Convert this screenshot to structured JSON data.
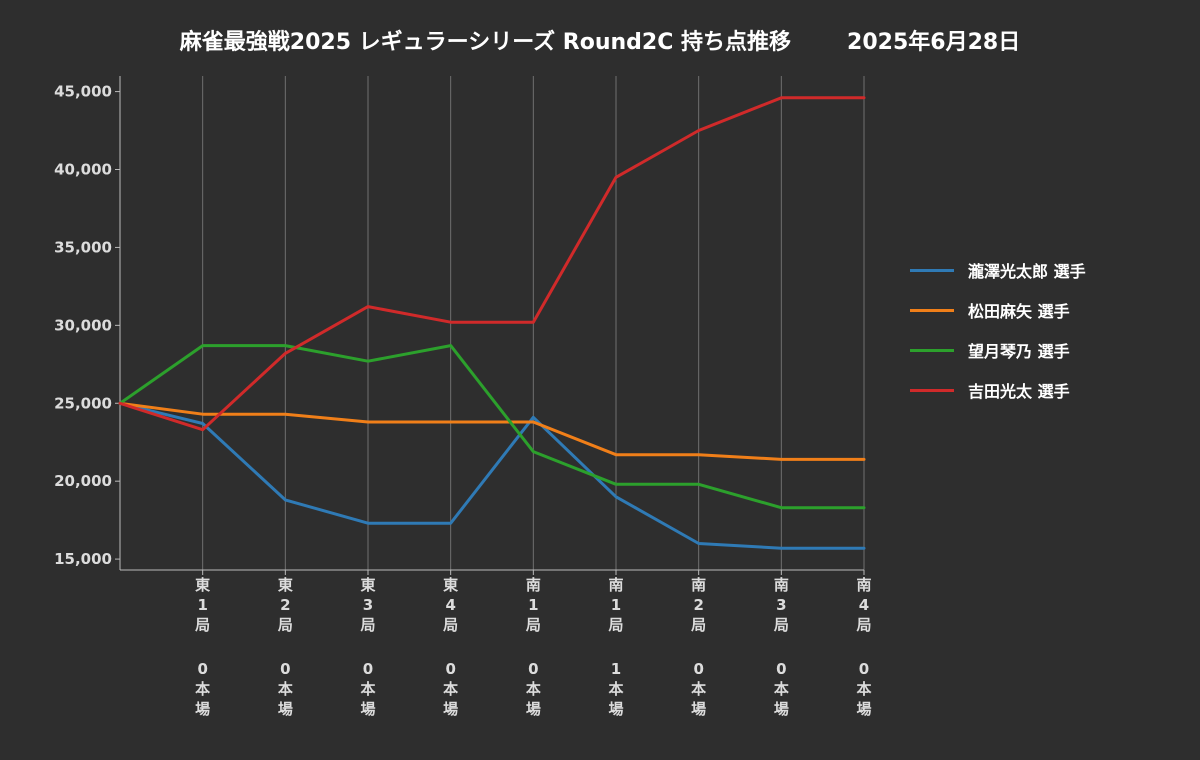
{
  "title": "麻雀最強戦2025 レギュラーシリーズ Round2C 持ち点推移",
  "date": "2025年6月28日",
  "colors": {
    "background": "#2e2e2e",
    "grid": "#707070",
    "axis": "#bbbbbb"
  },
  "chart_data": {
    "type": "line",
    "title": "麻雀最強戦2025 レギュラーシリーズ Round2C 持ち点推移",
    "categories": [
      "",
      "東1局0本場",
      "東2局0本場",
      "東3局0本場",
      "東4局0本場",
      "南1局0本場",
      "南1局1本場",
      "南2局0本場",
      "南3局0本場",
      "南4局0本場"
    ],
    "x_tick_labels": [
      {
        "wind": "東",
        "num": "1",
        "kyoku": "局",
        "honba": "0",
        "honba_label": "本場"
      },
      {
        "wind": "東",
        "num": "2",
        "kyoku": "局",
        "honba": "0",
        "honba_label": "本場"
      },
      {
        "wind": "東",
        "num": "3",
        "kyoku": "局",
        "honba": "0",
        "honba_label": "本場"
      },
      {
        "wind": "東",
        "num": "4",
        "kyoku": "局",
        "honba": "0",
        "honba_label": "本場"
      },
      {
        "wind": "南",
        "num": "1",
        "kyoku": "局",
        "honba": "0",
        "honba_label": "本場"
      },
      {
        "wind": "南",
        "num": "1",
        "kyoku": "局",
        "honba": "1",
        "honba_label": "本場"
      },
      {
        "wind": "南",
        "num": "2",
        "kyoku": "局",
        "honba": "0",
        "honba_label": "本場"
      },
      {
        "wind": "南",
        "num": "3",
        "kyoku": "局",
        "honba": "0",
        "honba_label": "本場"
      },
      {
        "wind": "南",
        "num": "4",
        "kyoku": "局",
        "honba": "0",
        "honba_label": "本場"
      }
    ],
    "y_ticks": [
      15000,
      20000,
      25000,
      30000,
      35000,
      40000,
      45000
    ],
    "y_tick_labels": [
      "15,000",
      "20,000",
      "25,000",
      "30,000",
      "35,000",
      "40,000",
      "45,000"
    ],
    "ylim": [
      14300,
      46000
    ],
    "grid": "vertical",
    "legend_position": "right",
    "series": [
      {
        "name": "瀧澤光太郎 選手",
        "color": "#2f7ab5",
        "values": [
          25000,
          23700,
          18800,
          17300,
          17300,
          24100,
          19000,
          16000,
          15700,
          15700
        ]
      },
      {
        "name": "松田麻矢 選手",
        "color": "#f07f19",
        "values": [
          25000,
          24300,
          24300,
          23800,
          23800,
          23800,
          21700,
          21700,
          21400,
          21400
        ]
      },
      {
        "name": "望月琴乃 選手",
        "color": "#2ca02c",
        "values": [
          25000,
          28700,
          28700,
          27700,
          28700,
          21900,
          19800,
          19800,
          18300,
          18300
        ]
      },
      {
        "name": "吉田光太 選手",
        "color": "#d02a2a",
        "values": [
          25000,
          23300,
          28200,
          31200,
          30200,
          30200,
          39500,
          42500,
          44600,
          44600
        ]
      }
    ]
  }
}
